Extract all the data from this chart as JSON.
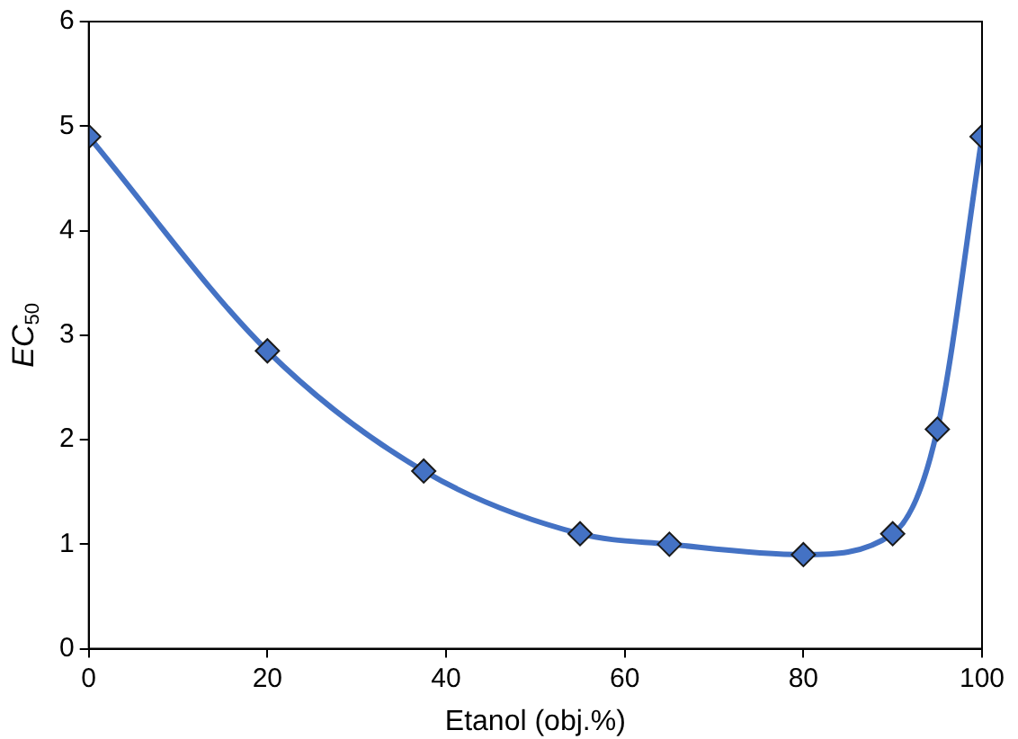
{
  "chart_data": {
    "type": "line",
    "xlabel": "Etanol (obj.%)",
    "ylabel": "EC$_{50}$",
    "x": [
      0,
      20,
      37.5,
      55,
      65,
      80,
      90,
      95,
      100
    ],
    "series": [
      {
        "color": "#4472c4",
        "values": [
          4.9,
          2.85,
          1.7,
          1.1,
          1.0,
          0.9,
          1.1,
          2.1,
          4.9
        ]
      }
    ],
    "xlim": [
      0,
      100
    ],
    "xticks": [
      0,
      20,
      40,
      60,
      80,
      100
    ],
    "ylim": [
      0,
      6
    ],
    "yticks": [
      0,
      1,
      2,
      3,
      4,
      5,
      6
    ],
    "grid": false,
    "legend": false,
    "marker": "diamond",
    "line_style": "solid"
  }
}
